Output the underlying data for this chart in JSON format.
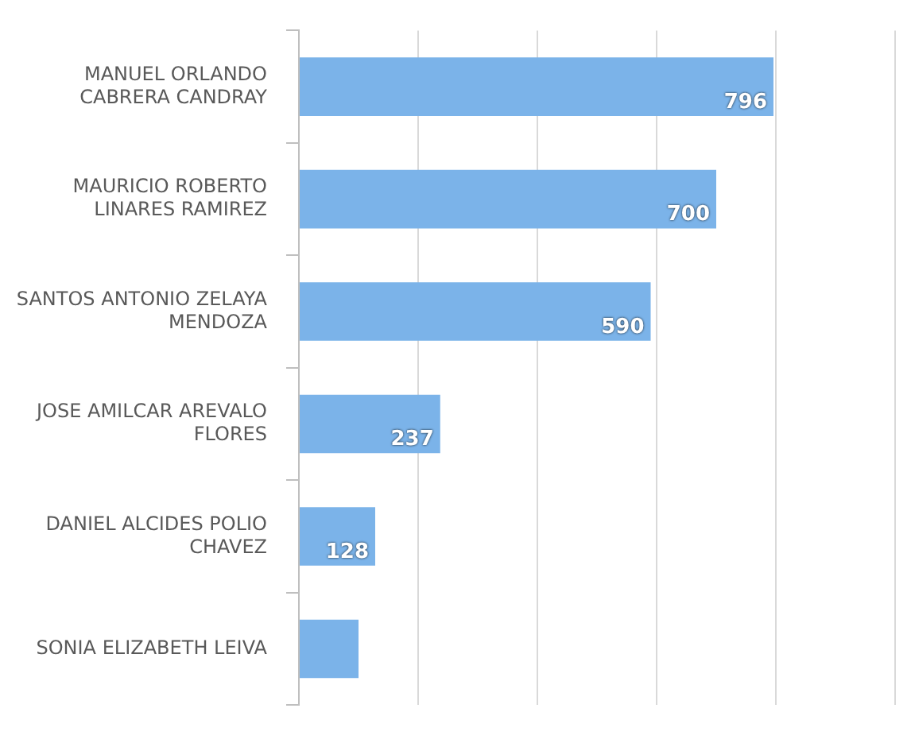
{
  "chart_data": {
    "type": "bar",
    "orientation": "horizontal",
    "categories": [
      "MANUEL ORLANDO CABRERA CANDRAY",
      "MAURICIO ROBERTO LINARES RAMIREZ",
      "SANTOS ANTONIO ZELAYA MENDOZA",
      "JOSE AMILCAR AREVALO FLORES",
      "DANIEL ALCIDES POLIO CHAVEZ",
      "SONIA ELIZABETH LEIVA"
    ],
    "values": [
      796,
      700,
      590,
      237,
      128,
      100
    ],
    "value_labels": [
      "796",
      "700",
      "590",
      "237",
      "128",
      null
    ],
    "color": "#7bb3e9",
    "xlim": [
      0,
      1000
    ],
    "xticks": [
      {
        "value": 0,
        "label": null
      },
      {
        "value": 200,
        "label": null
      },
      {
        "value": 400,
        "label": null
      },
      {
        "value": 600,
        "label": null
      },
      {
        "value": 800,
        "label": null
      },
      {
        "value": 1000,
        "label": null
      }
    ],
    "grid": "x",
    "legend": false
  }
}
